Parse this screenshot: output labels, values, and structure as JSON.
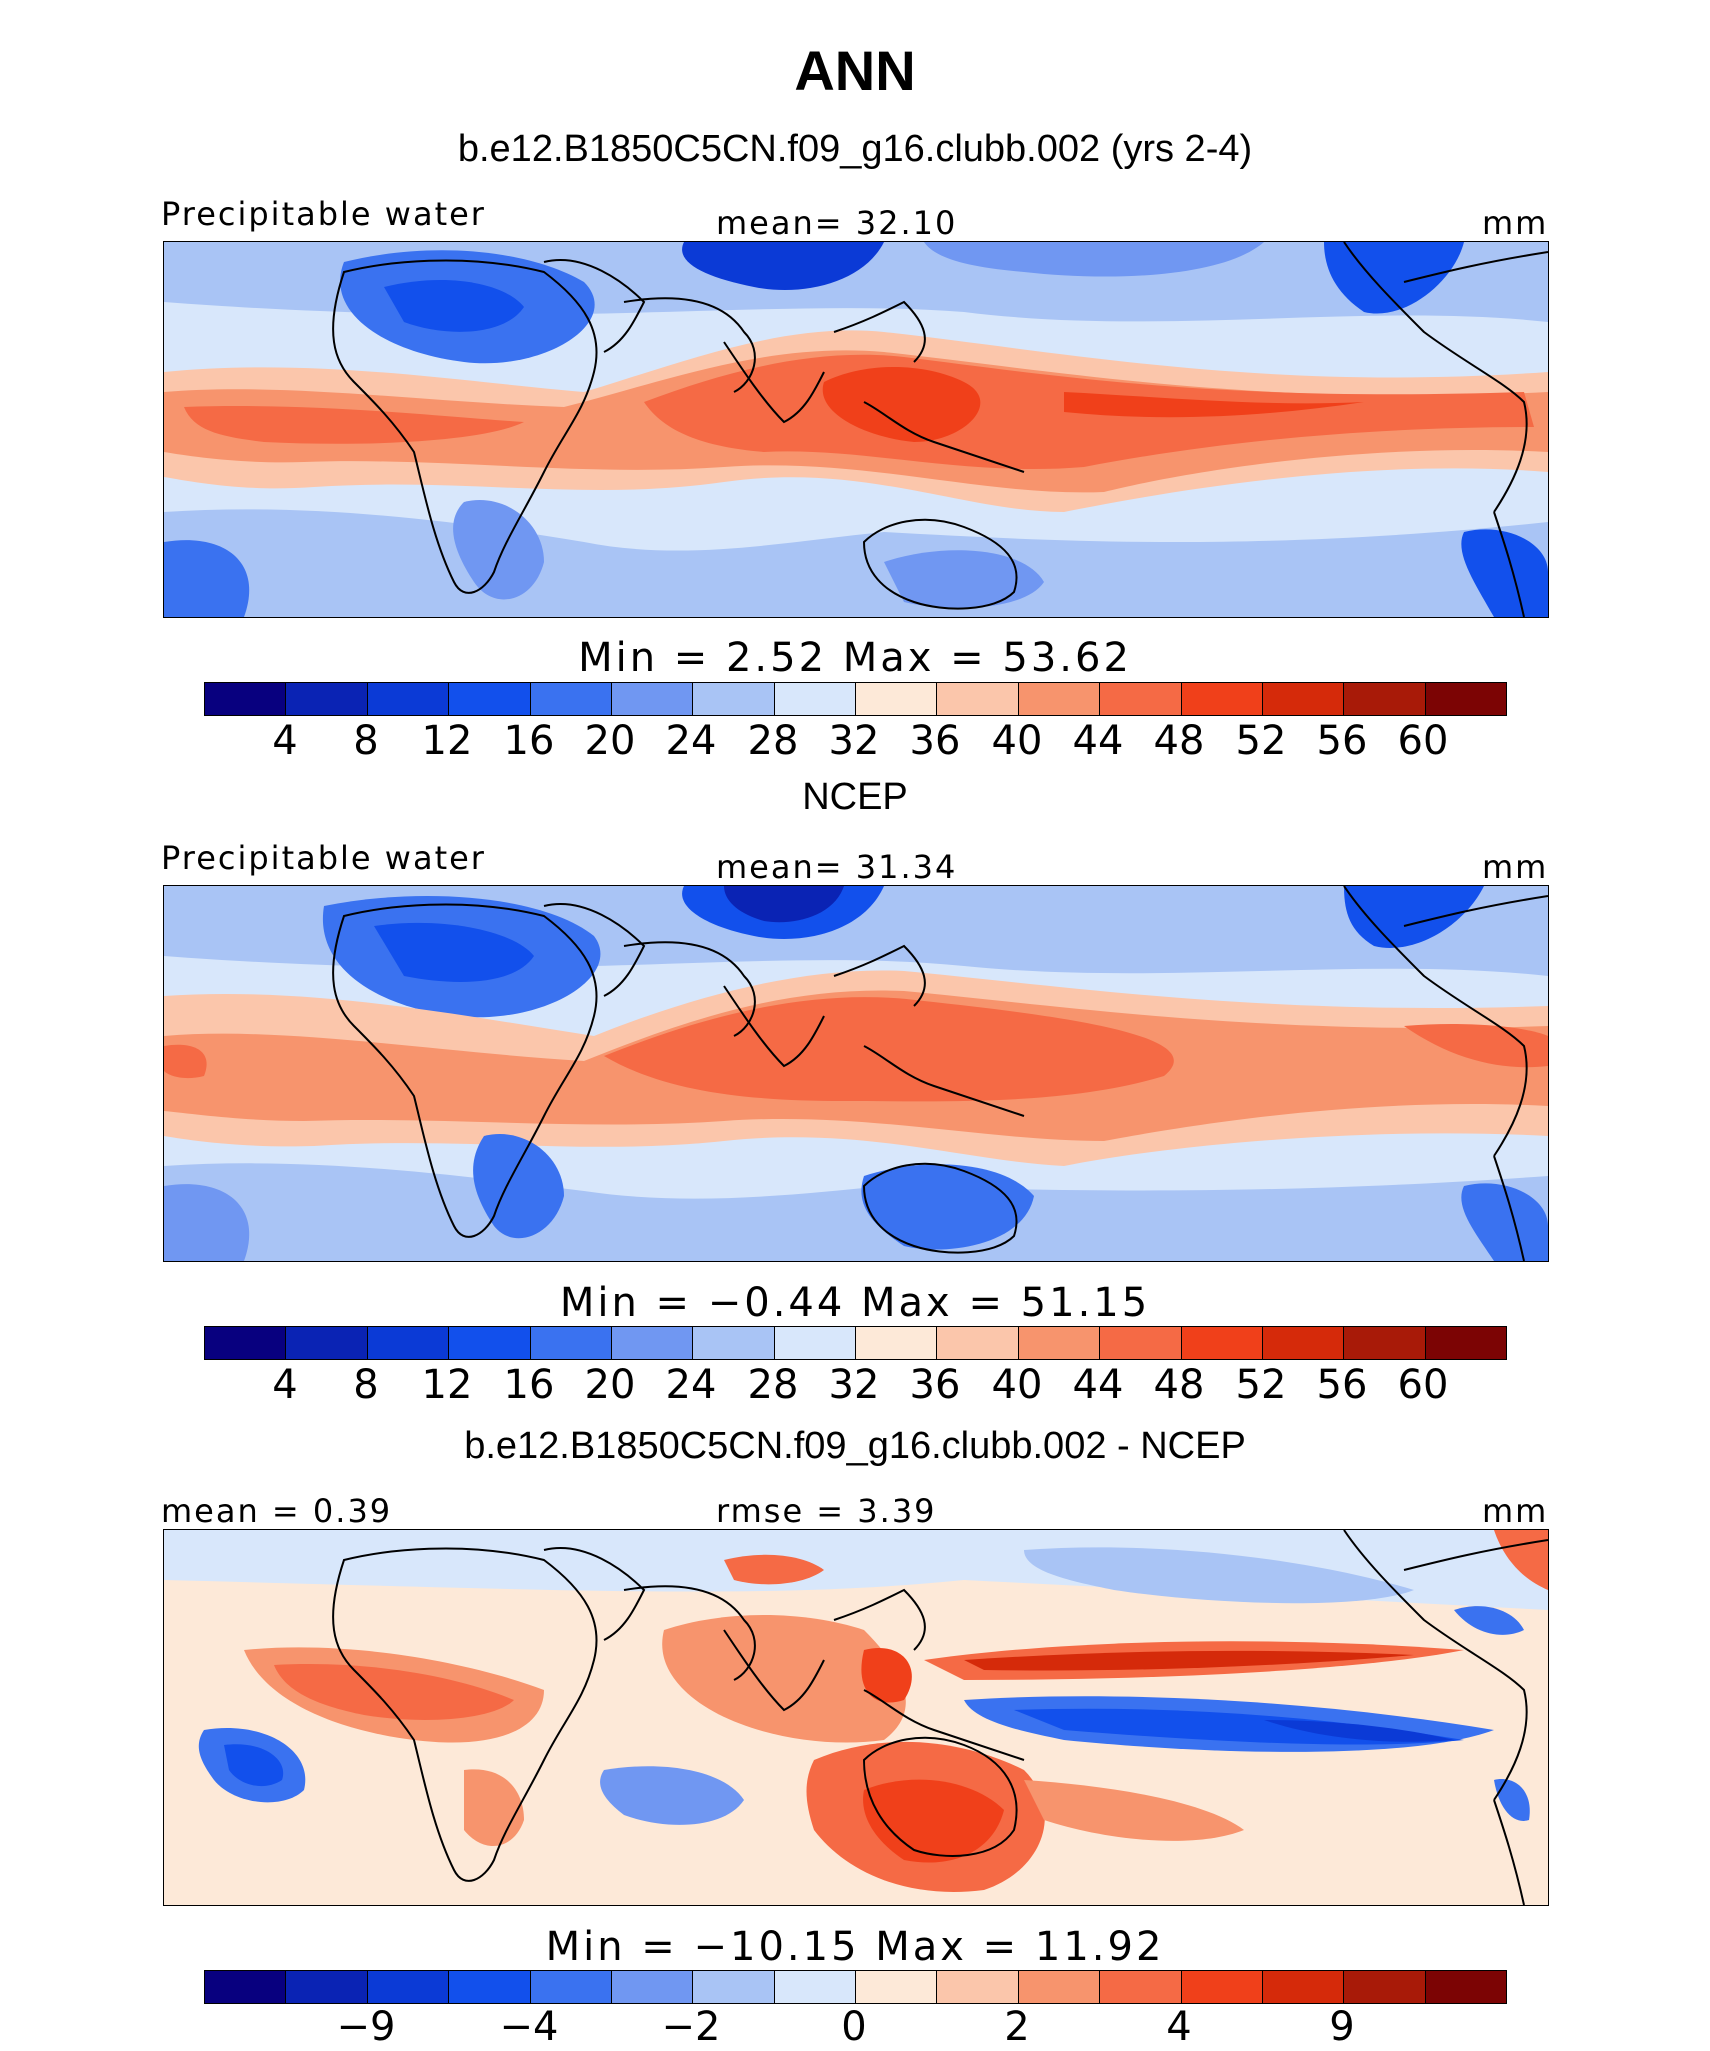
{
  "figure": {
    "season": "ANN",
    "colors": [
      "#08007f",
      "#0a23b4",
      "#0b3ad6",
      "#1250ec",
      "#3a72f0",
      "#7097f2",
      "#a9c4f5",
      "#d8e7fb",
      "#fde9d8",
      "#fbc6ab",
      "#f7946d",
      "#f56a45",
      "#f0401a",
      "#d52a0a",
      "#a81a08",
      "#7c0404"
    ]
  },
  "panels": [
    {
      "title": "b.e12.B1850C5CN.f09_g16.clubb.002 (yrs 2-4)",
      "left_label": "Precipitable water",
      "center_label": "mean=   32.10",
      "right_label": "mm",
      "minmax": "Min  =     2.52  Max  =    53.62",
      "ticks": [
        "4",
        "8",
        "12",
        "16",
        "20",
        "24",
        "28",
        "32",
        "36",
        "40",
        "44",
        "48",
        "52",
        "56",
        "60"
      ]
    },
    {
      "title": "NCEP",
      "left_label": "Precipitable water",
      "center_label": "mean=   31.34",
      "right_label": "mm",
      "minmax": "Min  =   −0.44  Max  =    51.15",
      "ticks": [
        "4",
        "8",
        "12",
        "16",
        "20",
        "24",
        "28",
        "32",
        "36",
        "40",
        "44",
        "48",
        "52",
        "56",
        "60"
      ]
    },
    {
      "title": "b.e12.B1850C5CN.f09_g16.clubb.002 - NCEP",
      "left_label": "mean =    0.39",
      "center_label": "rmse  =    3.39",
      "right_label": "mm",
      "minmax": "Min  =  −10.15  Max  =    11.92",
      "ticks": [
        "−9",
        "−4",
        "−2",
        "0",
        "2",
        "4",
        "9"
      ]
    }
  ]
}
